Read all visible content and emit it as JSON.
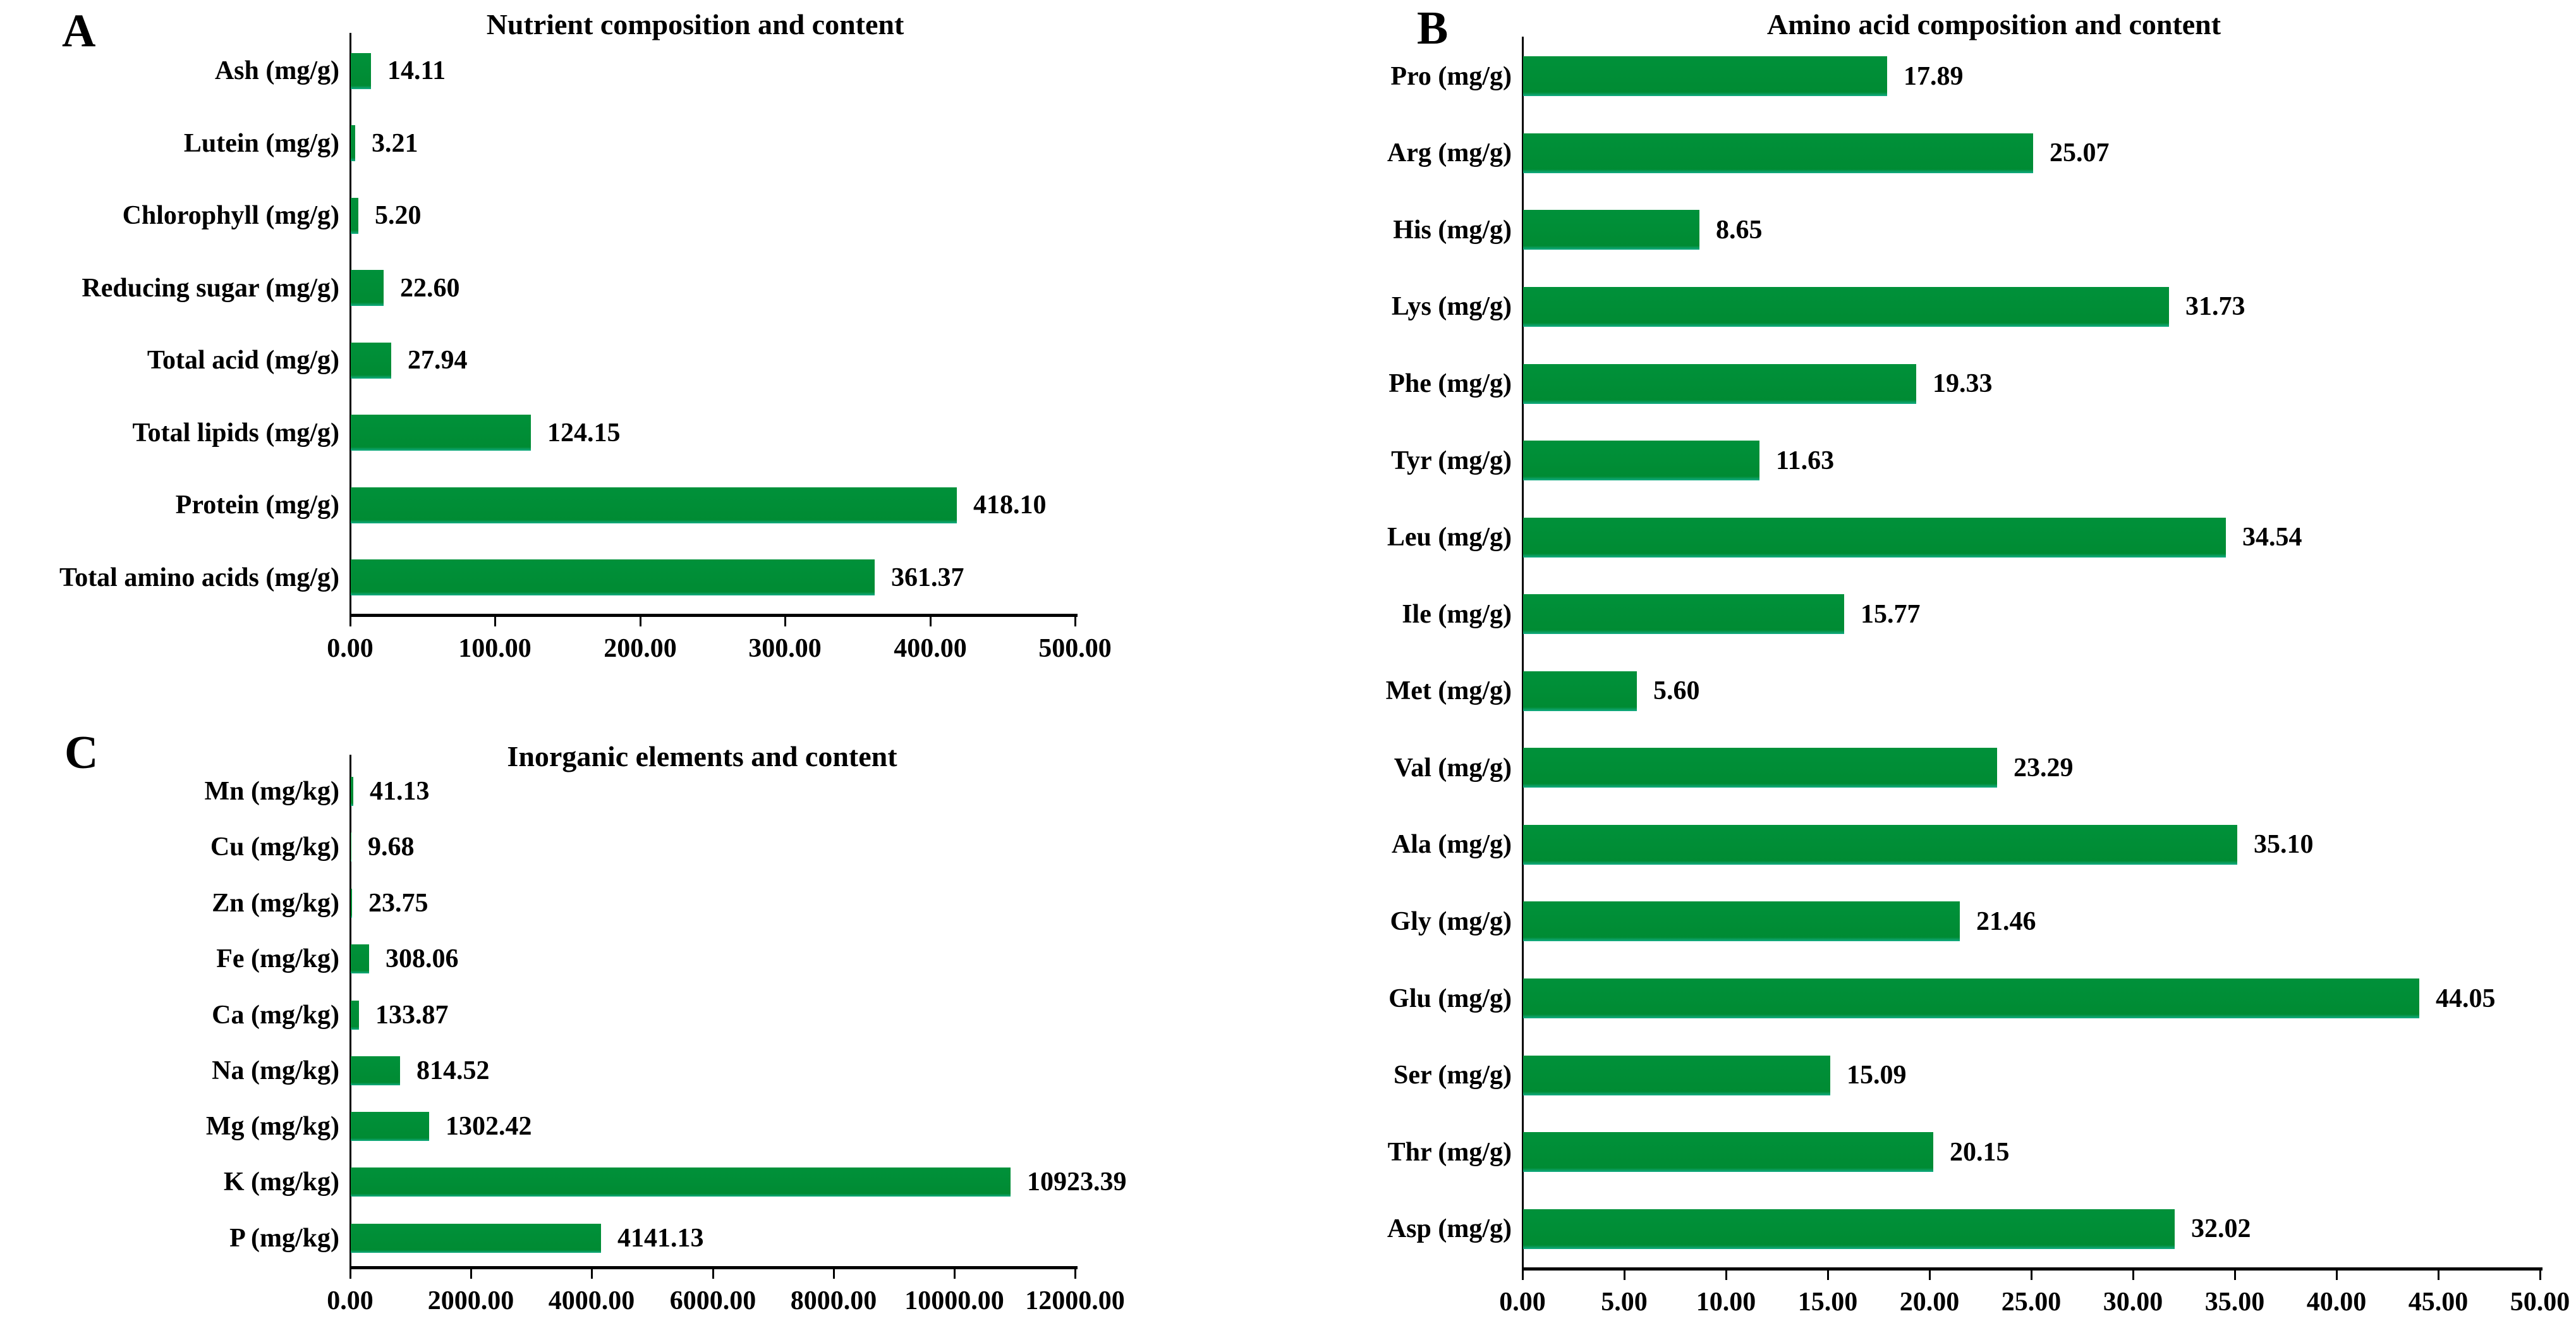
{
  "figure": {
    "background": "#ffffff",
    "text_color": "#000000",
    "axis_color": "#000000",
    "bar_color": "#008b33"
  },
  "chart_data": [
    {
      "type": "bar",
      "orientation": "horizontal",
      "panel_letter": "A",
      "title": "Nutrient composition and content",
      "categories": [
        "Ash (mg/g)",
        "Lutein (mg/g)",
        "Chlorophyll (mg/g)",
        "Reducing sugar (mg/g)",
        "Total acid (mg/g)",
        "Total lipids (mg/g)",
        "Protein (mg/g)",
        "Total amino acids (mg/g)"
      ],
      "values": [
        14.11,
        3.21,
        5.2,
        22.6,
        27.94,
        124.15,
        418.1,
        361.37
      ],
      "value_labels": [
        "14.11",
        "3.21",
        "5.20",
        "22.60",
        "27.94",
        "124.15",
        "418.10",
        "361.37"
      ],
      "xlim": [
        0,
        500
      ],
      "xtick_interval": 100,
      "xtick_labels": [
        "0.00",
        "100.00",
        "200.00",
        "300.00",
        "400.00",
        "500.00"
      ],
      "grid": false,
      "legend": null
    },
    {
      "type": "bar",
      "orientation": "horizontal",
      "panel_letter": "B",
      "title": "Amino acid composition and content",
      "categories": [
        "Pro (mg/g)",
        "Arg (mg/g)",
        "His (mg/g)",
        "Lys (mg/g)",
        "Phe (mg/g)",
        "Tyr (mg/g)",
        "Leu (mg/g)",
        "Ile (mg/g)",
        "Met (mg/g)",
        "Val (mg/g)",
        "Ala (mg/g)",
        "Gly (mg/g)",
        "Glu (mg/g)",
        "Ser (mg/g)",
        "Thr (mg/g)",
        "Asp (mg/g)"
      ],
      "values": [
        17.89,
        25.07,
        8.65,
        31.73,
        19.33,
        11.63,
        34.54,
        15.77,
        5.6,
        23.29,
        35.1,
        21.46,
        44.05,
        15.09,
        20.15,
        32.02
      ],
      "value_labels": [
        "17.89",
        "25.07",
        "8.65",
        "31.73",
        "19.33",
        "11.63",
        "34.54",
        "15.77",
        "5.60",
        "23.29",
        "35.10",
        "21.46",
        "44.05",
        "15.09",
        "20.15",
        "32.02"
      ],
      "xlim": [
        0,
        50
      ],
      "xtick_interval": 5,
      "xtick_labels": [
        "0.00",
        "5.00",
        "10.00",
        "15.00",
        "20.00",
        "25.00",
        "30.00",
        "35.00",
        "40.00",
        "45.00",
        "50.00"
      ],
      "grid": false,
      "legend": null
    },
    {
      "type": "bar",
      "orientation": "horizontal",
      "panel_letter": "C",
      "title": "Inorganic elements and content",
      "categories": [
        "Mn (mg/kg)",
        "Cu (mg/kg)",
        "Zn (mg/kg)",
        "Fe (mg/kg)",
        "Ca (mg/kg)",
        "Na (mg/kg)",
        "Mg (mg/kg)",
        "K (mg/kg)",
        "P (mg/kg)"
      ],
      "values": [
        41.13,
        9.68,
        23.75,
        308.06,
        133.87,
        814.52,
        1302.42,
        10923.39,
        4141.13
      ],
      "value_labels": [
        "41.13",
        "9.68",
        "23.75",
        "308.06",
        "133.87",
        "814.52",
        "1302.42",
        "10923.39",
        "4141.13"
      ],
      "xlim": [
        0,
        12000
      ],
      "xtick_interval": 2000,
      "xtick_labels": [
        "0.00",
        "2000.00",
        "4000.00",
        "6000.00",
        "8000.00",
        "10000.00",
        "12000.00"
      ],
      "grid": false,
      "legend": null
    }
  ]
}
